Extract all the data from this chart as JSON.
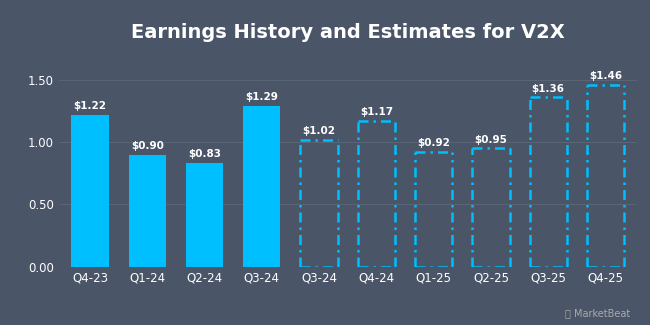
{
  "title": "Earnings History and Estimates for V2X",
  "background_color": "#4a5568",
  "plot_bg_color": "#4a5568",
  "categories": [
    "Q4-23",
    "Q1-24",
    "Q2-24",
    "Q3-24",
    "Q3-24",
    "Q4-24",
    "Q1-25",
    "Q2-25",
    "Q3-25",
    "Q4-25"
  ],
  "values": [
    1.22,
    0.9,
    0.83,
    1.29,
    1.02,
    1.17,
    0.92,
    0.95,
    1.36,
    1.46
  ],
  "labels": [
    "$1.22",
    "$0.90",
    "$0.83",
    "$1.29",
    "$1.02",
    "$1.17",
    "$0.92",
    "$0.95",
    "$1.36",
    "$1.46"
  ],
  "is_estimate": [
    false,
    false,
    false,
    false,
    true,
    true,
    true,
    true,
    true,
    true
  ],
  "solid_color": "#00bfff",
  "dashed_color": "#00bfff",
  "ylim": [
    0,
    1.75
  ],
  "yticks": [
    0.0,
    0.5,
    1.0,
    1.5
  ],
  "grid_color": "#5a6678",
  "text_color": "#ffffff",
  "title_fontsize": 14,
  "label_fontsize": 7.5,
  "tick_fontsize": 8.5,
  "bar_width": 0.65
}
